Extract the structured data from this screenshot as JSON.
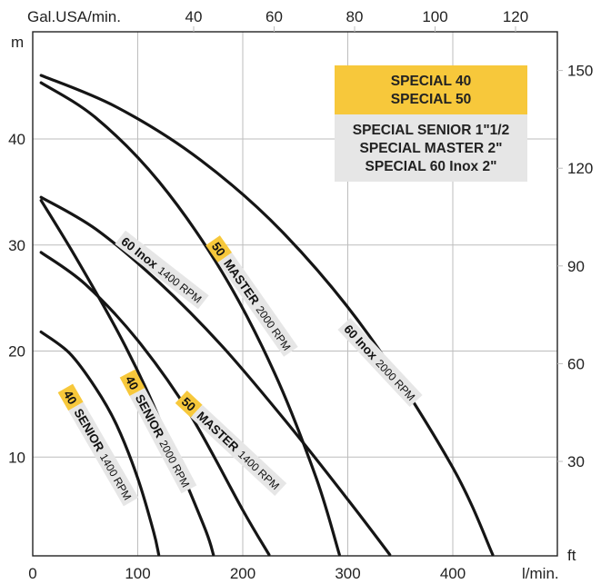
{
  "chart_data": {
    "type": "line",
    "xlabel": "l/min.",
    "ylabel": "m",
    "x2label": "Gal.USA/min.",
    "y2label": "ft",
    "xlim": [
      0,
      500
    ],
    "ylim": [
      0,
      47
    ],
    "x_ticks": [
      0,
      100,
      200,
      300,
      400
    ],
    "y_ticks": [
      10,
      20,
      30,
      40
    ],
    "x2_ticks": [
      40,
      60,
      80,
      100,
      120
    ],
    "y2_ticks": [
      30,
      60,
      90,
      120,
      150
    ],
    "grid": true,
    "legend": {
      "placement": "top-right",
      "highlighted": [
        "SPECIAL 40",
        "SPECIAL 50"
      ],
      "others": [
        "SPECIAL SENIOR 1\"1/2",
        "SPECIAL MASTER 2\"",
        "SPECIAL 60 Inox 2\""
      ],
      "highlight_color": "#f7c83b",
      "box_color": "#e6e6e6"
    },
    "series": [
      {
        "badge": "40",
        "model": "SENIOR",
        "rpm": "1400 RPM",
        "x": [
          8,
          35,
          60,
          80,
          100,
          115,
          120
        ],
        "y": [
          21.8,
          19.8,
          16.5,
          13,
          8,
          3,
          0.8
        ]
      },
      {
        "badge": "40",
        "model": "SENIOR",
        "rpm": "2000 RPM",
        "x": [
          8,
          40,
          80,
          110,
          140,
          165,
          172
        ],
        "y": [
          34.2,
          29,
          22,
          16,
          9,
          3,
          0.8
        ]
      },
      {
        "badge": "50",
        "model": "MASTER",
        "rpm": "1400 RPM",
        "x": [
          8,
          50,
          100,
          150,
          200,
          225
        ],
        "y": [
          29.3,
          26.3,
          21,
          14,
          5,
          0.8
        ]
      },
      {
        "badge": "",
        "model": "60 Inox",
        "rpm": "1400 RPM",
        "x": [
          8,
          60,
          120,
          180,
          240,
          300,
          340
        ],
        "y": [
          34.5,
          31.5,
          26.5,
          20.5,
          13.5,
          6,
          0.8
        ]
      },
      {
        "badge": "50",
        "model": "MASTER",
        "rpm": "2000 RPM",
        "x": [
          8,
          60,
          120,
          180,
          230,
          270,
          292
        ],
        "y": [
          45.3,
          42,
          36,
          27.5,
          18,
          8,
          0.8
        ]
      },
      {
        "badge": "",
        "model": "60 Inox",
        "rpm": "2000 RPM",
        "x": [
          8,
          80,
          160,
          240,
          320,
          400,
          438
        ],
        "y": [
          46,
          43,
          38,
          31,
          21.5,
          9,
          0.8
        ]
      }
    ],
    "colors": {
      "curve": "#151515",
      "badge": "#f7c83b",
      "label_box": "#e6e6e6",
      "grid": "#bdbdbd"
    }
  }
}
